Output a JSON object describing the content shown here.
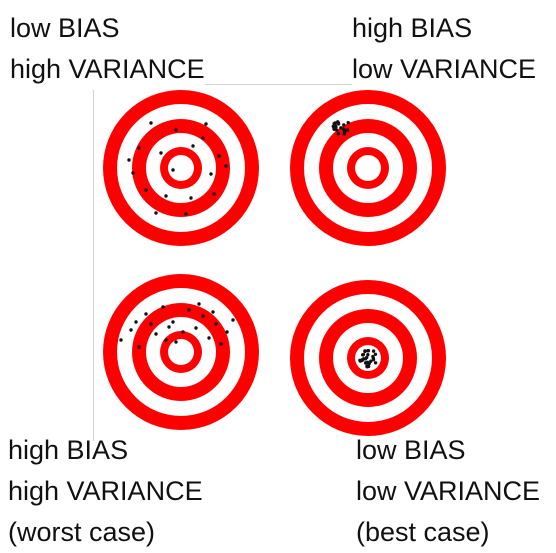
{
  "quadrants": {
    "top_left": {
      "lines": [
        "low BIAS",
        "high VARIANCE"
      ]
    },
    "top_right": {
      "lines": [
        "high BIAS",
        "low VARIANCE"
      ]
    },
    "bottom_left": {
      "lines": [
        "high BIAS",
        "high VARIANCE",
        "(worst case)"
      ]
    },
    "bottom_right": {
      "lines": [
        "low BIAS",
        "low VARIANCE",
        "(best case)"
      ]
    }
  },
  "colors": {
    "ring": "#ff0000",
    "gap": "#ffffff",
    "dot": "#111111",
    "frame": "#d2d2d2"
  }
}
